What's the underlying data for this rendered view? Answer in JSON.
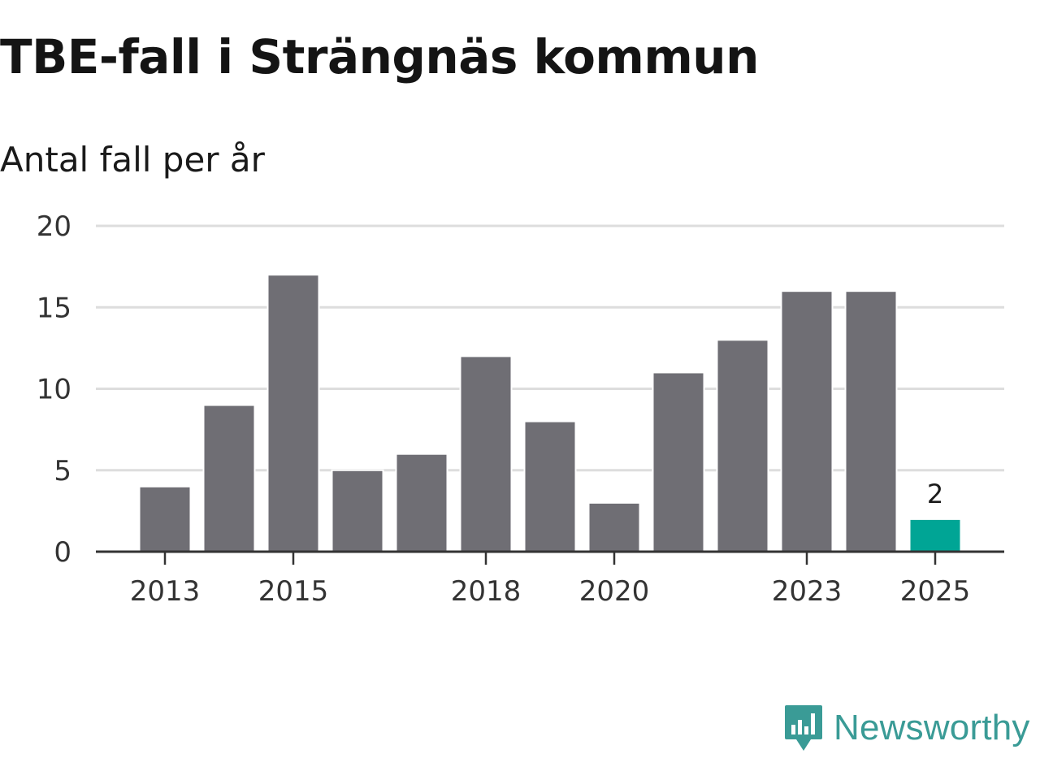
{
  "header": {
    "title": "TBE-fall i Strängnäs kommun",
    "subtitle": "Antal fall per år"
  },
  "brand": {
    "name": "Newsworthy",
    "icon": "newsworthy-logo-icon"
  },
  "colors": {
    "bar": "#6f6e74",
    "highlight": "#00a595",
    "grid": "#dddddd",
    "axis": "#333333",
    "brand": "#3a9b96"
  },
  "chart_data": {
    "type": "bar",
    "title": "TBE-fall i Strängnäs kommun",
    "subtitle": "Antal fall per år",
    "xlabel": "",
    "ylabel": "",
    "categories": [
      "2013",
      "2014",
      "2015",
      "2016",
      "2017",
      "2018",
      "2019",
      "2020",
      "2021",
      "2022",
      "2023",
      "2024",
      "2025"
    ],
    "values": [
      4,
      9,
      17,
      5,
      6,
      12,
      8,
      3,
      11,
      13,
      16,
      16,
      2
    ],
    "x_tick_labels": [
      "2013",
      "2015",
      "2018",
      "2020",
      "2023",
      "2025"
    ],
    "y_ticks": [
      0,
      5,
      10,
      15,
      20
    ],
    "ylim": [
      0,
      20
    ],
    "grid": true,
    "highlight_index": 12,
    "annotations": [
      {
        "category": "2025",
        "text": "2"
      }
    ]
  }
}
